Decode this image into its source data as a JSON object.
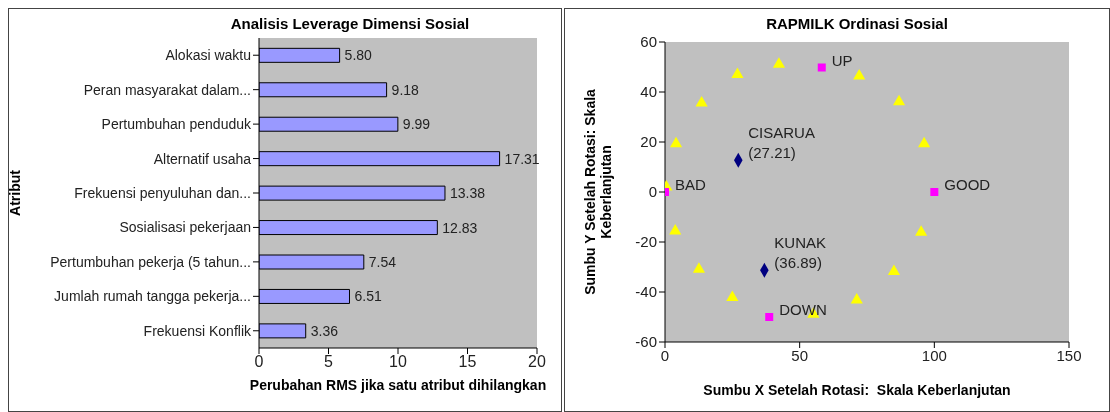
{
  "chart_data": [
    {
      "type": "bar",
      "orientation": "horizontal",
      "title": "Analisis Leverage Dimensi Sosial",
      "xlabel": "Perubahan RMS jika satu atribut dihilangkan",
      "ylabel": "Atribut",
      "categories": [
        "Alokasi waktu",
        "Peran masyarakat dalam...",
        "Pertumbuhan penduduk",
        "Alternatif usaha",
        "Frekuensi penyuluhan dan...",
        "Sosialisasi pekerjaan",
        "Pertumbuhan pekerja (5 tahun...",
        "Jumlah rumah tangga pekerja...",
        "Frekuensi Konflik"
      ],
      "values": [
        5.8,
        9.18,
        9.99,
        17.31,
        13.38,
        12.83,
        7.54,
        6.51,
        3.36
      ],
      "value_labels": [
        "5.80",
        "9.18",
        "9.99",
        "17.31",
        "13.38",
        "12.83",
        "7.54",
        "6.51",
        "3.36"
      ],
      "color": "#9999ff",
      "xlim": [
        0,
        20
      ],
      "xticks": [
        0,
        5,
        10,
        15,
        20
      ],
      "grid": false,
      "legend": false
    },
    {
      "type": "scatter",
      "title": "RAPMILK Ordinasi Sosial",
      "xlabel": "Sumbu X Setelah Rotasi:  Skala Keberlanjutan",
      "ylabel": "Sumbu Y Setelah Rotasi:  Skala Keberlanjutan",
      "series": [
        {
          "color": "#ffff00",
          "marker": "triangle",
          "x": [
            4.1,
            13.6,
            26.9,
            42.3,
            72.1,
            86.9,
            96.2,
            0.5,
            3.8,
            12.6,
            25,
            55.1,
            71.2,
            85,
            95.1
          ],
          "values": [
            19.3,
            35.6,
            47,
            51.1,
            46.4,
            36.1,
            19.3,
            2,
            -15.6,
            -30.9,
            -42.2,
            -48.9,
            -43.2,
            -31.8,
            -16.1
          ]
        },
        {
          "color": "#ff00ff",
          "marker": "square",
          "x": [
            58.2,
            38.7,
            100,
            0
          ],
          "values": [
            49.8,
            -50,
            0,
            0
          ]
        },
        {
          "color": "#000080",
          "marker": "diamond",
          "x": [
            27.21,
            36.89
          ],
          "values": [
            12.7,
            -31.3
          ]
        }
      ],
      "annotations": [
        {
          "text": "UP",
          "x": 58.2,
          "y": 49.8
        },
        {
          "text": "DOWN",
          "x": 38.7,
          "y": -50
        },
        {
          "text": "GOOD",
          "x": 100,
          "y": 0
        },
        {
          "text": "BAD",
          "x": 0,
          "y": 0
        },
        {
          "text": "CISARUA\n(27.21)",
          "x": 27.21,
          "y": 12.7
        },
        {
          "text": "KUNAK\n(36.89)",
          "x": 36.89,
          "y": -31.3
        }
      ],
      "xlim": [
        0,
        150
      ],
      "xticks": [
        0,
        50,
        100,
        150
      ],
      "ylim": [
        -60,
        60
      ],
      "yticks": [
        -60,
        -40,
        -20,
        0,
        20,
        40,
        60
      ],
      "grid": false,
      "legend": false
    }
  ]
}
